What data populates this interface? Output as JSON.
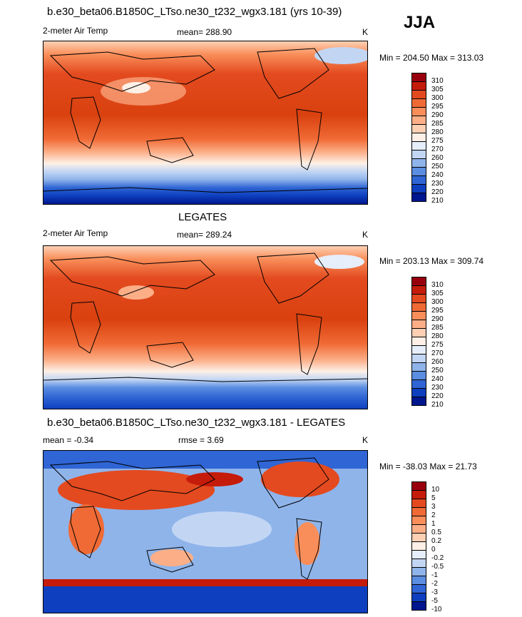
{
  "season": "JJA",
  "panels": [
    {
      "title": "b.e30_beta06.B1850C_LTso.ne30_t232_wgx3.181 (yrs 10-39)",
      "left_label": "2-meter Air Temp",
      "center_label": "mean= 288.90",
      "units": "K",
      "minmax": "Min = 204.50 Max = 313.03",
      "colorbar": [
        "310",
        "305",
        "300",
        "295",
        "290",
        "285",
        "280",
        "275",
        "270",
        "260",
        "250",
        "240",
        "230",
        "220",
        "210"
      ]
    },
    {
      "title": "LEGATES",
      "left_label": "2-meter Air Temp",
      "center_label": "mean= 289.24",
      "units": "K",
      "minmax": "Min = 203.13 Max = 309.74",
      "colorbar": [
        "310",
        "305",
        "300",
        "295",
        "290",
        "285",
        "280",
        "275",
        "270",
        "260",
        "250",
        "240",
        "230",
        "220",
        "210"
      ]
    },
    {
      "title": "b.e30_beta06.B1850C_LTso.ne30_t232_wgx3.181 - LEGATES",
      "left_label": "mean =  -0.34",
      "center_label": "rmse =   3.69",
      "units": "K",
      "minmax": "Min = -38.03 Max =  21.73",
      "colorbar": [
        "10",
        "5",
        "3",
        "2",
        "1",
        "0.5",
        "0.2",
        "0",
        "-0.2",
        "-0.5",
        "-1",
        "-2",
        "-3",
        "-5",
        "-10"
      ]
    }
  ],
  "colors": {
    "scale": [
      "#99000d",
      "#c51b0a",
      "#e34a1f",
      "#f06a35",
      "#f98e5a",
      "#fcae87",
      "#fdd0b4",
      "#fef0e6",
      "#e6eefb",
      "#c2d6f4",
      "#8fb4ea",
      "#5b8de0",
      "#2f65d4",
      "#0d3fbf",
      "#00168f"
    ]
  },
  "chart_data": [
    {
      "type": "heatmap",
      "title": "b.e30_beta06.B1850C_LTso.ne30_t232_wgx3.181 (yrs 10-39)",
      "variable": "2-meter Air Temp",
      "units": "K",
      "mean": 288.9,
      "min": 204.5,
      "max": 313.03,
      "levels": [
        210,
        220,
        230,
        240,
        250,
        260,
        270,
        275,
        280,
        285,
        290,
        295,
        300,
        305,
        310
      ]
    },
    {
      "type": "heatmap",
      "title": "LEGATES",
      "variable": "2-meter Air Temp",
      "units": "K",
      "mean": 289.24,
      "min": 203.13,
      "max": 309.74,
      "levels": [
        210,
        220,
        230,
        240,
        250,
        260,
        270,
        275,
        280,
        285,
        290,
        295,
        300,
        305,
        310
      ]
    },
    {
      "type": "heatmap",
      "title": "b.e30_beta06.B1850C_LTso.ne30_t232_wgx3.181 - LEGATES",
      "units": "K",
      "mean": -0.34,
      "rmse": 3.69,
      "min": -38.03,
      "max": 21.73,
      "levels": [
        -10,
        -5,
        -3,
        -2,
        -1,
        -0.5,
        -0.2,
        0,
        0.2,
        0.5,
        1,
        2,
        3,
        5,
        10
      ]
    }
  ]
}
